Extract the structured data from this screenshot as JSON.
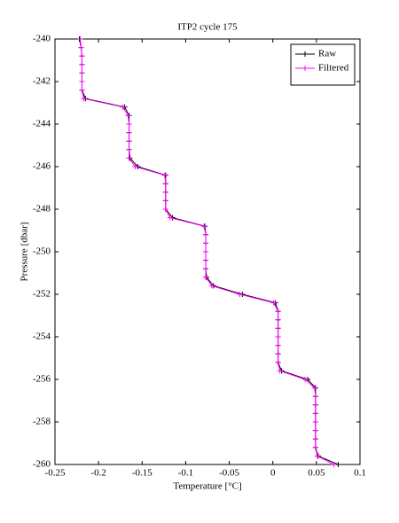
{
  "chart_data": {
    "type": "line",
    "title": "ITP2 cycle 175",
    "xlabel": "Temperature [°C]",
    "ylabel": "Pressure [dbar]",
    "xlim": [
      -0.25,
      0.1
    ],
    "xticks": [
      -0.25,
      -0.2,
      -0.15,
      -0.1,
      -0.05,
      0,
      0.05,
      0.1
    ],
    "ylim": [
      -260,
      -240
    ],
    "yticks": [
      -260,
      -258,
      -256,
      -254,
      -252,
      -250,
      -248,
      -246,
      -244,
      -242,
      -240
    ],
    "grid": false,
    "legend": "upper right",
    "marker": "+",
    "series": [
      {
        "name": "Raw",
        "color": "#000000",
        "x": [
          -0.222,
          -0.22,
          -0.219,
          -0.219,
          -0.219,
          -0.219,
          -0.219,
          -0.215,
          -0.17,
          -0.165,
          -0.165,
          -0.165,
          -0.165,
          -0.165,
          -0.164,
          -0.155,
          -0.123,
          -0.123,
          -0.123,
          -0.123,
          -0.123,
          -0.115,
          -0.078,
          -0.077,
          -0.077,
          -0.077,
          -0.077,
          -0.077,
          -0.076,
          -0.068,
          -0.035,
          0.003,
          0.006,
          0.006,
          0.006,
          0.006,
          0.006,
          0.006,
          0.006,
          0.01,
          0.04,
          0.049,
          0.049,
          0.049,
          0.049,
          0.049,
          0.049,
          0.049,
          0.049,
          0.052,
          0.075
        ],
        "values": [
          -240,
          -240.4,
          -240.8,
          -241.2,
          -241.6,
          -242,
          -242.4,
          -242.8,
          -243.2,
          -243.6,
          -244,
          -244.4,
          -244.8,
          -245.2,
          -245.6,
          -246,
          -246.4,
          -246.8,
          -247.2,
          -247.6,
          -248,
          -248.4,
          -248.8,
          -249.2,
          -249.6,
          -250,
          -250.4,
          -250.8,
          -251.2,
          -251.6,
          -252,
          -252.4,
          -252.8,
          -253.2,
          -253.6,
          -254,
          -254.4,
          -254.8,
          -255.2,
          -255.6,
          -256,
          -256.4,
          -256.8,
          -257.2,
          -257.6,
          -258,
          -258.4,
          -258.8,
          -259.2,
          -259.6,
          -260
        ]
      },
      {
        "name": "Filtered",
        "color": "#ff00ff",
        "x": [
          -0.221,
          -0.22,
          -0.219,
          -0.219,
          -0.219,
          -0.219,
          -0.219,
          -0.217,
          -0.172,
          -0.166,
          -0.165,
          -0.165,
          -0.165,
          -0.165,
          -0.165,
          -0.158,
          -0.124,
          -0.123,
          -0.123,
          -0.123,
          -0.123,
          -0.118,
          -0.079,
          -0.077,
          -0.077,
          -0.077,
          -0.077,
          -0.077,
          -0.077,
          -0.07,
          -0.038,
          0.001,
          0.006,
          0.006,
          0.006,
          0.006,
          0.006,
          0.006,
          0.006,
          0.008,
          0.037,
          0.048,
          0.049,
          0.049,
          0.049,
          0.049,
          0.049,
          0.049,
          0.049,
          0.051,
          0.07
        ],
        "values": [
          -240,
          -240.4,
          -240.8,
          -241.2,
          -241.6,
          -242,
          -242.4,
          -242.8,
          -243.2,
          -243.6,
          -244,
          -244.4,
          -244.8,
          -245.2,
          -245.6,
          -246,
          -246.4,
          -246.8,
          -247.2,
          -247.6,
          -248,
          -248.4,
          -248.8,
          -249.2,
          -249.6,
          -250,
          -250.4,
          -250.8,
          -251.2,
          -251.6,
          -252,
          -252.4,
          -252.8,
          -253.2,
          -253.6,
          -254,
          -254.4,
          -254.8,
          -255.2,
          -255.6,
          -256,
          -256.4,
          -256.8,
          -257.2,
          -257.6,
          -258,
          -258.4,
          -258.8,
          -259.2,
          -259.6,
          -260
        ]
      }
    ]
  }
}
